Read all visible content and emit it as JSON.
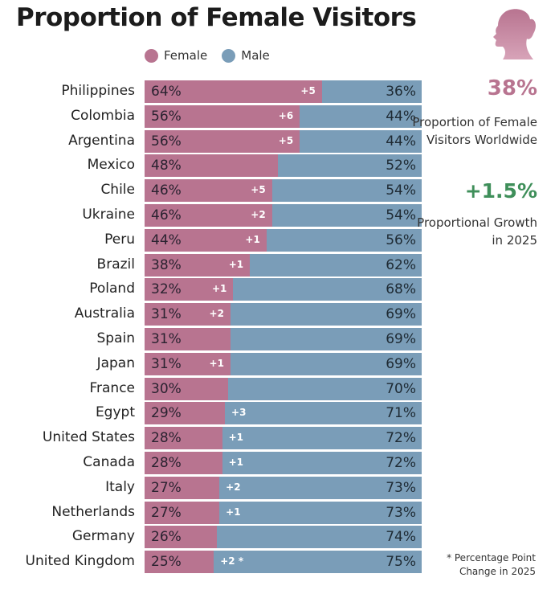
{
  "chart_data": {
    "type": "bar",
    "stacked": true,
    "orientation": "horizontal",
    "title": "Proportion of Female Visitors",
    "legend": [
      {
        "name": "Female",
        "color": "#b87490"
      },
      {
        "name": "Male",
        "color": "#7a9db8"
      }
    ],
    "categories": [
      "Philippines",
      "Colombia",
      "Argentina",
      "Mexico",
      "Chile",
      "Ukraine",
      "Peru",
      "Brazil",
      "Poland",
      "Australia",
      "Spain",
      "Japan",
      "France",
      "Egypt",
      "United States",
      "Canada",
      "Italy",
      "Netherlands",
      "Germany",
      "United Kingdom"
    ],
    "series": [
      {
        "name": "Female",
        "values": [
          64,
          56,
          56,
          48,
          46,
          46,
          44,
          38,
          32,
          31,
          31,
          31,
          30,
          29,
          28,
          28,
          27,
          27,
          26,
          25
        ]
      },
      {
        "name": "Male",
        "values": [
          36,
          44,
          44,
          52,
          54,
          54,
          56,
          62,
          68,
          69,
          69,
          69,
          70,
          71,
          72,
          72,
          73,
          73,
          74,
          75
        ]
      }
    ],
    "change_labels": [
      "+5",
      "+6",
      "+5",
      "",
      "+5",
      "+2",
      "+1",
      "+1",
      "+1",
      "+2",
      "",
      "+1",
      "",
      "+3",
      "+1",
      "+1",
      "+2",
      "+1",
      "",
      "+2 *"
    ],
    "xlim": [
      0,
      100
    ]
  },
  "summary": {
    "worldwide_value": "38%",
    "worldwide_caption": "Proportion of Female Visitors Worldwide",
    "growth_value": "+1.5%",
    "growth_caption": "Proportional Growth in 2025",
    "footnote": "* Percentage Point Change in 2025",
    "female_color": "#b87490",
    "growth_color": "#3f8f5a"
  },
  "icons": {
    "header": "female-head-silhouette-icon"
  }
}
